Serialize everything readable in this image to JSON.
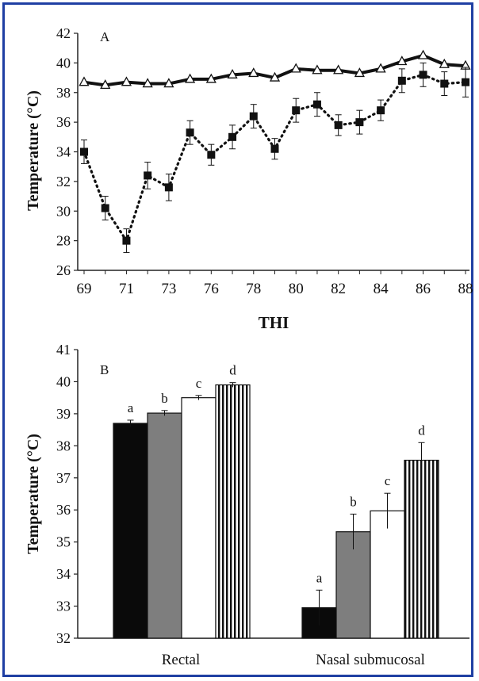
{
  "chart_data": [
    {
      "type": "line",
      "panel_label": "A",
      "xlabel": "THI",
      "ylabel": "Temperature (°C)",
      "ylim": [
        26,
        42
      ],
      "yticks": [
        26,
        28,
        30,
        32,
        34,
        36,
        38,
        40,
        42
      ],
      "x_ticklabels": [
        "69",
        "71",
        "73",
        "76",
        "78",
        "80",
        "82",
        "84",
        "86",
        "88"
      ],
      "categories": [
        "69",
        "70",
        "71",
        "72",
        "73",
        "74",
        "76",
        "77",
        "78",
        "79",
        "80",
        "81",
        "82",
        "83",
        "84",
        "85",
        "86",
        "87",
        "88"
      ],
      "series": [
        {
          "marker": "triangle",
          "line_style": "solid",
          "values": [
            38.7,
            38.5,
            38.7,
            38.6,
            38.6,
            38.9,
            38.9,
            39.2,
            39.3,
            39.0,
            39.6,
            39.5,
            39.5,
            39.3,
            39.6,
            40.1,
            40.5,
            39.9,
            39.8
          ],
          "errors": [
            0.1,
            0.1,
            0.1,
            0.1,
            0.1,
            0.1,
            0.1,
            0.1,
            0.1,
            0.1,
            0.1,
            0.1,
            0.1,
            0.1,
            0.1,
            0.1,
            0.1,
            0.1,
            0.1
          ]
        },
        {
          "marker": "square",
          "line_style": "dotted",
          "values": [
            34.0,
            30.2,
            28.0,
            32.4,
            31.6,
            35.3,
            33.8,
            35.0,
            36.4,
            34.2,
            36.8,
            37.2,
            35.8,
            36.0,
            36.8,
            38.8,
            39.2,
            38.6,
            38.7
          ],
          "errors": [
            0.8,
            0.8,
            0.8,
            0.9,
            0.9,
            0.8,
            0.7,
            0.8,
            0.8,
            0.7,
            0.8,
            0.8,
            0.7,
            0.8,
            0.7,
            0.8,
            0.8,
            0.8,
            1.0
          ]
        }
      ]
    },
    {
      "type": "bar",
      "panel_label": "B",
      "ylabel": "Temperature (°C)",
      "ylim": [
        32,
        41
      ],
      "yticks": [
        32,
        33,
        34,
        35,
        36,
        37,
        38,
        39,
        40,
        41
      ],
      "categories": [
        "Rectal",
        "Nasal submucosal"
      ],
      "bar_fills": [
        "black",
        "gray",
        "white",
        "vertical-stripes"
      ],
      "series": [
        {
          "values": [
            38.7,
            32.95
          ],
          "errors": [
            0.1,
            0.55
          ],
          "letters": [
            "a",
            "a"
          ]
        },
        {
          "values": [
            39.02,
            35.32
          ],
          "errors": [
            0.08,
            0.55
          ],
          "letters": [
            "b",
            "b"
          ]
        },
        {
          "values": [
            39.5,
            35.97
          ],
          "errors": [
            0.07,
            0.55
          ],
          "letters": [
            "c",
            "c"
          ]
        },
        {
          "values": [
            39.9,
            37.55
          ],
          "errors": [
            0.07,
            0.55
          ],
          "letters": [
            "d",
            "d"
          ]
        }
      ]
    }
  ]
}
